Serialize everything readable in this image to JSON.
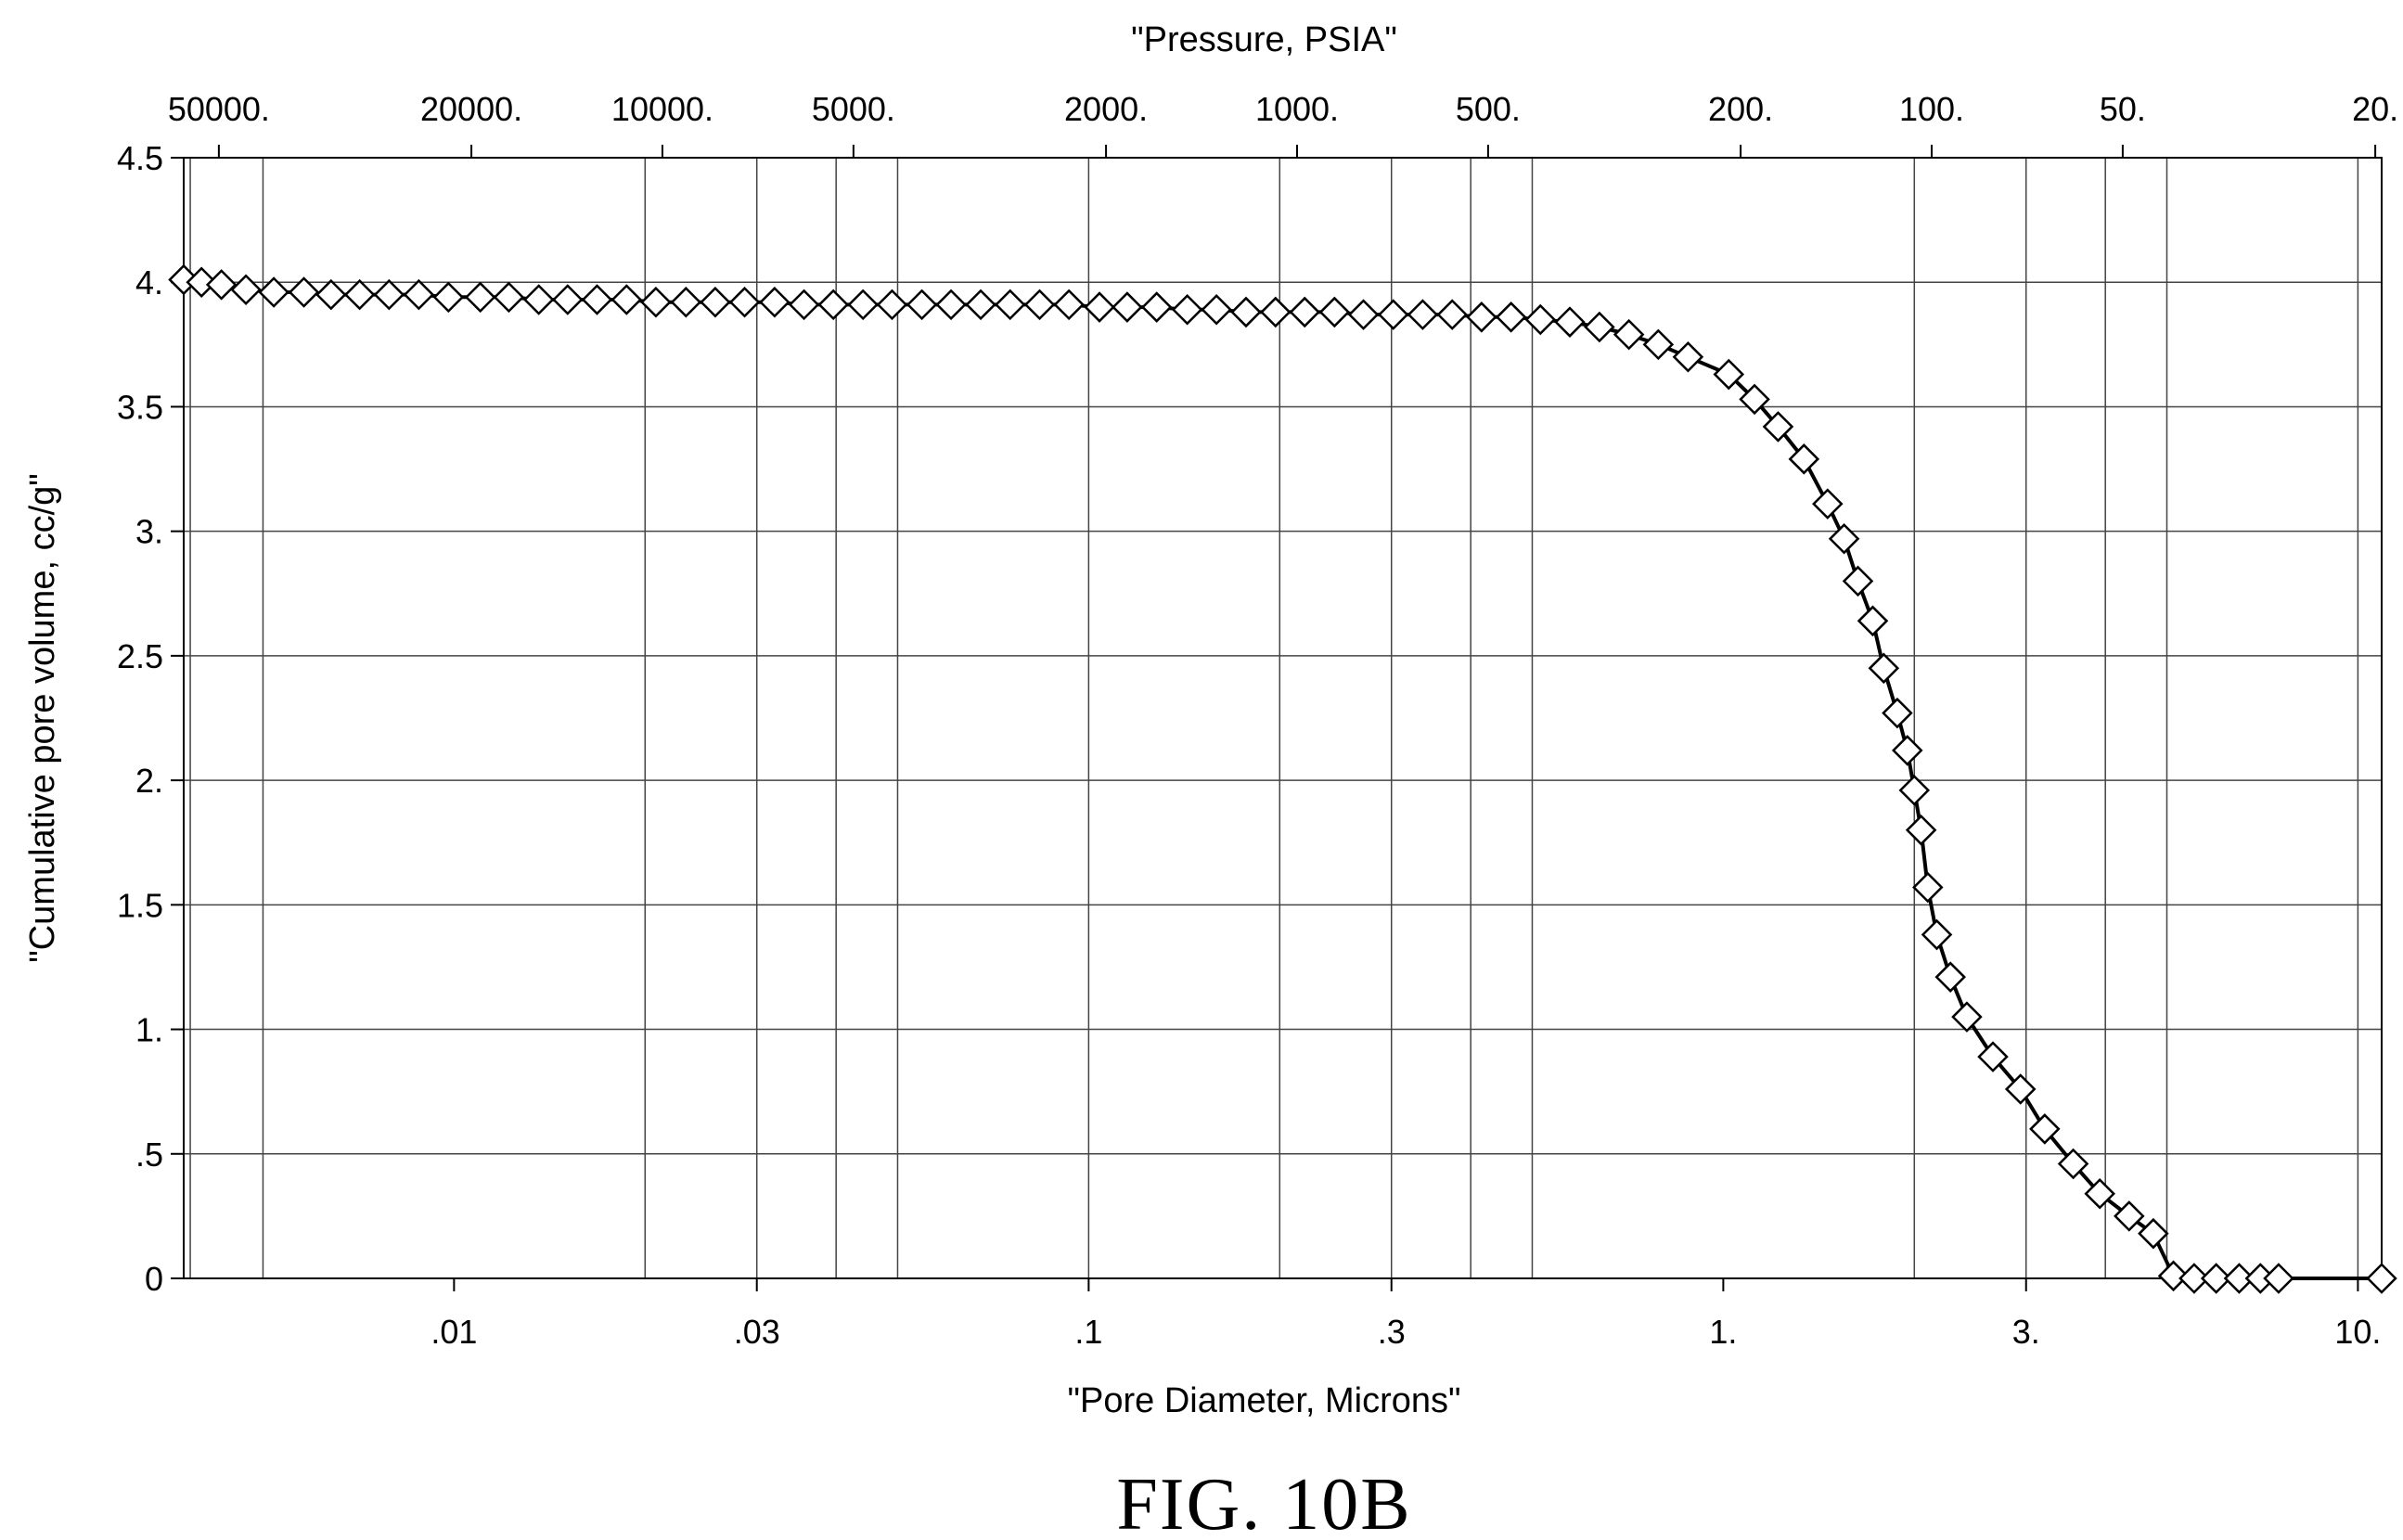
{
  "figure": {
    "caption": "FIG. 10B"
  },
  "chart_data": {
    "type": "line",
    "markers": "diamond",
    "title": "",
    "xlabel": "\"Pore Diameter, Microns\"",
    "ylabel": "\"Cumulative pore volume, cc/g\"",
    "x2label": "\"Pressure, PSIA\"",
    "xscale": "log",
    "x2scale": "log",
    "xlim": [
      0.00375,
      10.9
    ],
    "ylim": [
      0,
      4.5
    ],
    "grid": true,
    "legend": "none",
    "xticks": [
      {
        "value": 0.01,
        "label": ".01"
      },
      {
        "value": 0.03,
        "label": ".03"
      },
      {
        "value": 0.1,
        "label": ".1"
      },
      {
        "value": 0.3,
        "label": ".3"
      },
      {
        "value": 1,
        "label": "1."
      },
      {
        "value": 3,
        "label": "3."
      },
      {
        "value": 10,
        "label": "10."
      }
    ],
    "xgrid": [
      0.00384,
      0.005,
      0.02,
      0.03,
      0.04,
      0.05,
      0.1,
      0.2,
      0.3,
      0.4,
      0.5,
      2,
      3,
      4,
      5,
      10
    ],
    "x2ticks": [
      {
        "value": 50000,
        "label": "50000."
      },
      {
        "value": 20000,
        "label": "20000."
      },
      {
        "value": 10000,
        "label": "10000."
      },
      {
        "value": 5000,
        "label": "5000."
      },
      {
        "value": 2000,
        "label": "2000."
      },
      {
        "value": 1000,
        "label": "1000."
      },
      {
        "value": 500,
        "label": "500."
      },
      {
        "value": 200,
        "label": "200."
      },
      {
        "value": 100,
        "label": "100."
      },
      {
        "value": 50,
        "label": "50."
      },
      {
        "value": 20,
        "label": "20."
      }
    ],
    "yticks": [
      {
        "value": 0,
        "label": "0"
      },
      {
        "value": 0.5,
        "label": ".5"
      },
      {
        "value": 1,
        "label": "1."
      },
      {
        "value": 1.5,
        "label": "1.5"
      },
      {
        "value": 2,
        "label": "2."
      },
      {
        "value": 2.5,
        "label": "2.5"
      },
      {
        "value": 3,
        "label": "3."
      },
      {
        "value": 3.5,
        "label": "3.5"
      },
      {
        "value": 4,
        "label": "4."
      },
      {
        "value": 4.5,
        "label": "4.5"
      }
    ],
    "series": [
      {
        "x": [
          0.00375,
          0.004,
          0.0043,
          0.0047,
          0.0052,
          0.0058,
          0.0064,
          0.0071,
          0.0079,
          0.0088,
          0.0098,
          0.011,
          0.0122,
          0.0136,
          0.0151,
          0.0168,
          0.0187,
          0.0208,
          0.0232,
          0.0258,
          0.0287,
          0.032,
          0.0356,
          0.0396,
          0.0441,
          0.049,
          0.0546,
          0.0607,
          0.0676,
          0.0752,
          0.0837,
          0.0931,
          0.104,
          0.115,
          0.128,
          0.143,
          0.159,
          0.177,
          0.197,
          0.219,
          0.244,
          0.271,
          0.302,
          0.336,
          0.374,
          0.416,
          0.463,
          0.515,
          0.573,
          0.638,
          0.71,
          0.79,
          0.88,
          1.02,
          1.12,
          1.22,
          1.34,
          1.46,
          1.55,
          1.63,
          1.72,
          1.79,
          1.88,
          1.95,
          2.0,
          2.05,
          2.1,
          2.17,
          2.28,
          2.42,
          2.66,
          2.94,
          3.21,
          3.56,
          3.92,
          4.36,
          4.76,
          5.12,
          5.52,
          5.98,
          6.5,
          7.02,
          7.5,
          10.9
        ],
        "y": [
          4.01,
          4.0,
          3.99,
          3.97,
          3.96,
          3.96,
          3.95,
          3.95,
          3.95,
          3.95,
          3.94,
          3.94,
          3.94,
          3.93,
          3.93,
          3.93,
          3.93,
          3.92,
          3.92,
          3.92,
          3.92,
          3.92,
          3.91,
          3.91,
          3.91,
          3.91,
          3.91,
          3.91,
          3.91,
          3.91,
          3.91,
          3.91,
          3.9,
          3.9,
          3.9,
          3.89,
          3.89,
          3.88,
          3.88,
          3.88,
          3.88,
          3.87,
          3.87,
          3.87,
          3.87,
          3.86,
          3.86,
          3.85,
          3.84,
          3.82,
          3.79,
          3.75,
          3.7,
          3.63,
          3.53,
          3.42,
          3.29,
          3.11,
          2.97,
          2.8,
          2.64,
          2.45,
          2.27,
          2.12,
          1.96,
          1.8,
          1.57,
          1.38,
          1.21,
          1.05,
          0.89,
          0.76,
          0.6,
          0.46,
          0.34,
          0.25,
          0.18,
          0.01,
          0,
          0,
          0,
          0,
          0,
          0
        ]
      }
    ]
  }
}
